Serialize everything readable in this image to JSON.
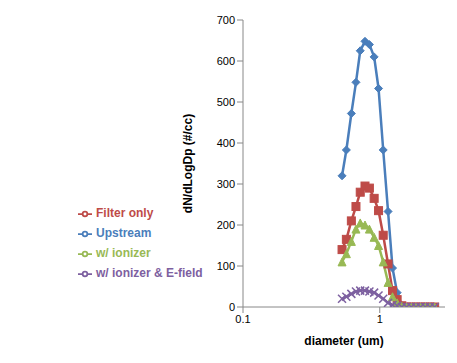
{
  "chart_data": {
    "type": "line",
    "xlabel": "diameter (um)",
    "ylabel": "dN/dLogDp (#/cc)",
    "log": "x",
    "grid": false,
    "legend": "center left",
    "xlim": [
      0.1,
      3
    ],
    "xticks": [
      0.1,
      1
    ],
    "ylim": [
      0,
      700
    ],
    "yticks": [
      0,
      100,
      200,
      300,
      400,
      500,
      600,
      700
    ],
    "x": [
      0.53,
      0.57,
      0.62,
      0.67,
      0.72,
      0.78,
      0.84,
      0.91,
      0.98,
      1.06,
      1.15,
      1.24,
      1.34,
      1.45,
      1.57,
      1.7,
      1.84,
      1.99,
      2.15,
      2.33,
      2.52
    ],
    "series": [
      {
        "name": "Upstream",
        "color": "#4a7ebb",
        "marker": "diamond",
        "values": [
          320,
          383,
          472,
          548,
          625,
          648,
          640,
          610,
          533,
          383,
          233,
          95,
          35,
          3,
          0,
          0,
          0,
          0,
          0,
          0,
          0
        ]
      },
      {
        "name": "Filter only",
        "color": "#be4b48",
        "marker": "square",
        "values": [
          140,
          165,
          210,
          245,
          280,
          295,
          290,
          265,
          235,
          175,
          105,
          40,
          18,
          3,
          0,
          0,
          0,
          0,
          0,
          0,
          0
        ]
      },
      {
        "name": "w/ ionizer",
        "color": "#98b954",
        "marker": "triangle",
        "values": [
          110,
          130,
          160,
          190,
          205,
          200,
          190,
          170,
          150,
          110,
          60,
          25,
          10,
          2,
          0,
          0,
          0,
          0,
          0,
          0,
          0
        ]
      },
      {
        "name": "w/ ionizer & E-field",
        "color": "#7d60a0",
        "marker": "x",
        "values": [
          20,
          25,
          32,
          38,
          40,
          40,
          38,
          35,
          28,
          20,
          10,
          5,
          3,
          0,
          0,
          0,
          0,
          0,
          0,
          0,
          0
        ]
      }
    ]
  }
}
